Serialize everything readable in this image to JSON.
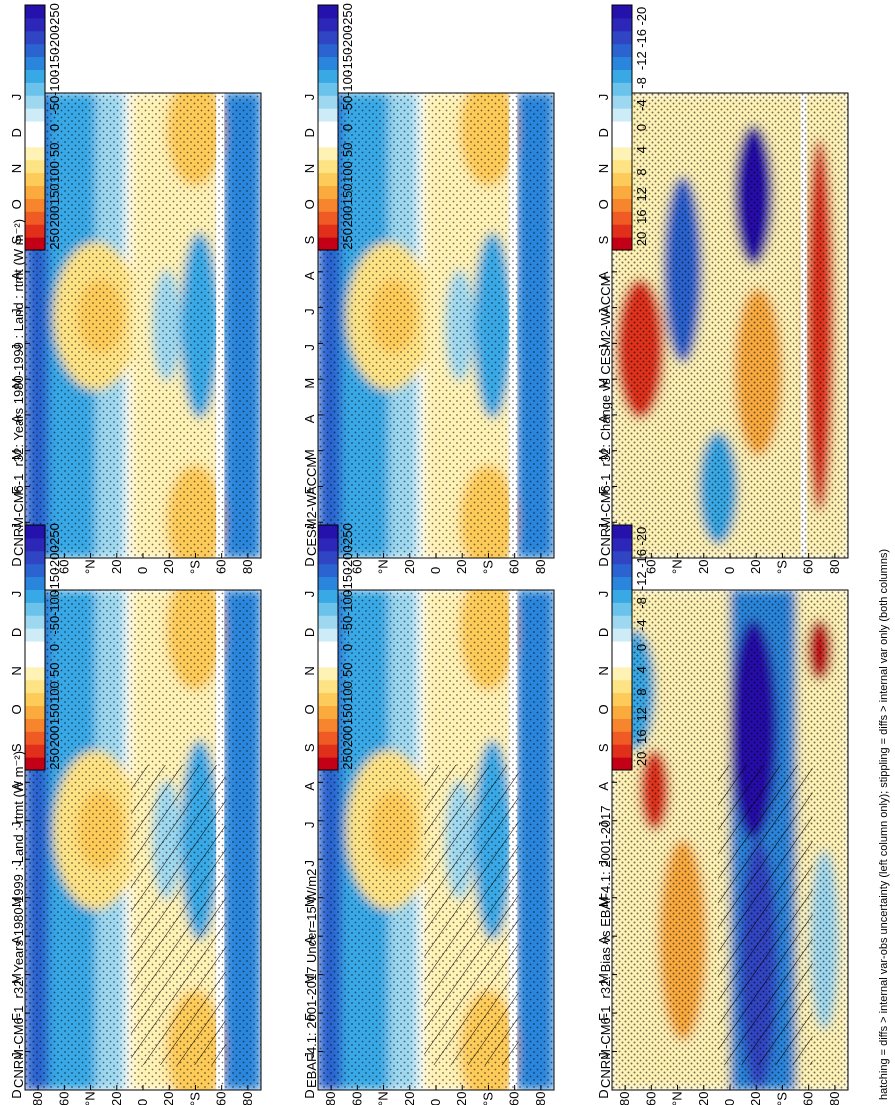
{
  "chart_data": {
    "type": "heatmap",
    "orientation": "rotated-90-cw",
    "x_ticks": [
      "D",
      "J",
      "F",
      "M",
      "A",
      "M",
      "J",
      "J",
      "A",
      "S",
      "O",
      "N",
      "D",
      "J"
    ],
    "y_ticks": [
      "80",
      "60",
      "°N",
      "20",
      "0",
      "20",
      "°S",
      "60",
      "80"
    ],
    "footnote": "hatching = diffs > internal var-obs uncertainty (left column only); stippling = diffs > internal var only (both columns)",
    "colorbars": [
      {
        "scale": "abs",
        "ticks": [
          "250",
          "200",
          "150",
          "100",
          "50",
          "0",
          "-50",
          "-100",
          "-150",
          "-200",
          "-250"
        ],
        "colors": [
          "#c40016",
          "#e0301c",
          "#f05a24",
          "#f7852e",
          "#fbab3d",
          "#fdcb59",
          "#fee384",
          "#fff2b5",
          "#ffffff",
          "#ffffff",
          "#cdecf7",
          "#9dd8f0",
          "#6bc3ec",
          "#39a9e6",
          "#2a86dc",
          "#2b63d0",
          "#3045c4",
          "#2c27b8",
          "#2511ab"
        ]
      },
      {
        "scale": "diff",
        "ticks": [
          "20",
          "16",
          "12",
          "8",
          "4",
          "0",
          "-4",
          "-8",
          "-12",
          "-16",
          "-20"
        ],
        "colors": [
          "#c40016",
          "#e0301c",
          "#f05a24",
          "#f7852e",
          "#fbab3d",
          "#fdcb59",
          "#fee384",
          "#fff2b5",
          "#ffffff",
          "#ffffff",
          "#cdecf7",
          "#9dd8f0",
          "#6bc3ec",
          "#39a9e6",
          "#2a86dc",
          "#2b63d0",
          "#3045c4",
          "#2c27b8",
          "#2511ab"
        ]
      }
    ],
    "panels": [
      {
        "title": "CNRM-CM6-1_r32: Years 1980-1999 : Land : rtmt (W m⁻²)",
        "scale": "abs",
        "pattern": "clim",
        "hatch": true,
        "stipple": "clim"
      },
      {
        "title": "CNRM-CM6-1_r32: Years 1980-1999 : Land : rtmt (W m⁻²)",
        "scale": "abs",
        "pattern": "clim",
        "hatch": false,
        "stipple": "clim"
      },
      {
        "title": "EBAF4.1: 2001-2017 Uncer=15 W/m2",
        "scale": "abs",
        "pattern": "clim",
        "hatch": true,
        "stipple": "clim"
      },
      {
        "title": "CESM2-WACCM",
        "scale": "abs",
        "pattern": "clim",
        "hatch": false,
        "stipple": "clim"
      },
      {
        "title": "CNRM-CM6-1_r32: Bias vs EBAF4.1: 2001-2017",
        "scale": "diff",
        "pattern": "bias",
        "hatch": true,
        "stipple": "dense"
      },
      {
        "title": "CNRM-CM6-1_r32: Change vs CESM2-WACCM",
        "scale": "diff",
        "pattern": "change",
        "hatch": false,
        "stipple": "dense"
      }
    ]
  }
}
